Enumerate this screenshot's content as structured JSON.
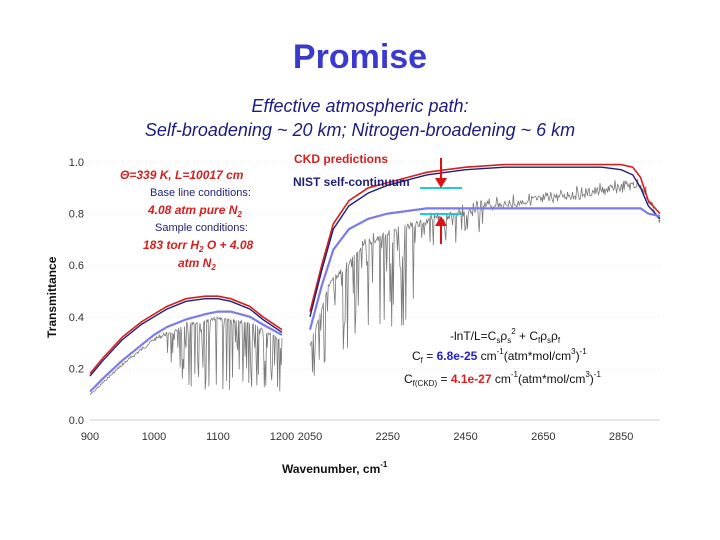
{
  "slide": {
    "title": "Promise",
    "subtitle_line1": "Effective atmospheric path:",
    "subtitle_line2": "Self-broadening ~ 20 km; Nitrogen-broadening ~ 6 km"
  },
  "colors": {
    "title": "#3a3ad0",
    "subtitle": "#1c1c80",
    "ckd": "#d62020",
    "nist": "#7b7bea",
    "measured": "#7a7a7a",
    "model_dark": "#1f1f7a",
    "cyan": "#20c8d8",
    "arrow": "#e01010"
  },
  "chart_data": {
    "type": "line",
    "xlabel": "Wavenumber, cm",
    "xlabel_sup": "-1",
    "ylabel": "Transmittance",
    "ylim": [
      0.0,
      1.0
    ],
    "yticks": [
      "1.0",
      "0.8",
      "0.6",
      "0.4",
      "0.2",
      "0.0"
    ],
    "grid": false,
    "panels": [
      {
        "xlim": [
          900,
          1200
        ],
        "xticks": [
          "900",
          "1000",
          "1100",
          "1200"
        ],
        "series": [
          {
            "name": "CKD predictions",
            "x": [
              900,
              920,
              950,
              980,
              1000,
              1020,
              1050,
              1080,
              1100,
              1120,
              1150,
              1170,
              1200
            ],
            "y": [
              0.18,
              0.24,
              0.32,
              0.38,
              0.41,
              0.44,
              0.47,
              0.48,
              0.48,
              0.47,
              0.44,
              0.4,
              0.35
            ]
          },
          {
            "name": "",
            "x": [
              900,
              920,
              950,
              980,
              1000,
              1020,
              1050,
              1080,
              1100,
              1120,
              1150,
              1170,
              1200
            ],
            "y": [
              0.17,
              0.23,
              0.31,
              0.37,
              0.4,
              0.43,
              0.46,
              0.47,
              0.47,
              0.46,
              0.43,
              0.39,
              0.34
            ]
          },
          {
            "name": "NIST self-continuum",
            "x": [
              900,
              920,
              950,
              980,
              1000,
              1020,
              1050,
              1080,
              1100,
              1120,
              1150,
              1170,
              1200
            ],
            "y": [
              0.11,
              0.16,
              0.23,
              0.29,
              0.33,
              0.36,
              0.39,
              0.41,
              0.42,
              0.42,
              0.4,
              0.37,
              0.33
            ]
          }
        ],
        "measured_envelope": {
          "x": [
            900,
            950,
            1000,
            1050,
            1100,
            1150,
            1200
          ],
          "y": [
            0.1,
            0.22,
            0.32,
            0.38,
            0.41,
            0.39,
            0.32
          ]
        }
      },
      {
        "xlim": [
          2050,
          2950
        ],
        "xticks": [
          "2050",
          "2250",
          "2450",
          "2650",
          "2850"
        ],
        "series": [
          {
            "name": "CKD predictions",
            "x": [
              2050,
              2080,
              2110,
              2150,
              2200,
              2250,
              2300,
              2350,
              2400,
              2450,
              2550,
              2650,
              2750,
              2800,
              2850,
              2880,
              2900,
              2920,
              2950
            ],
            "y": [
              0.42,
              0.6,
              0.76,
              0.85,
              0.9,
              0.92,
              0.94,
              0.96,
              0.97,
              0.98,
              0.99,
              0.99,
              0.99,
              0.99,
              0.99,
              0.98,
              0.94,
              0.85,
              0.8
            ]
          },
          {
            "name": "",
            "x": [
              2050,
              2080,
              2110,
              2150,
              2200,
              2250,
              2300,
              2350,
              2400,
              2450,
              2550,
              2650,
              2750,
              2800,
              2850,
              2880,
              2900,
              2920,
              2950
            ],
            "y": [
              0.4,
              0.58,
              0.74,
              0.83,
              0.88,
              0.91,
              0.93,
              0.95,
              0.96,
              0.97,
              0.98,
              0.98,
              0.98,
              0.98,
              0.97,
              0.95,
              0.9,
              0.83,
              0.78
            ]
          },
          {
            "name": "NIST self-continuum",
            "x": [
              2050,
              2080,
              2110,
              2150,
              2200,
              2250,
              2300,
              2350,
              2400,
              2450,
              2550,
              2650,
              2750,
              2800,
              2850,
              2880,
              2900,
              2920,
              2950
            ],
            "y": [
              0.35,
              0.52,
              0.66,
              0.74,
              0.78,
              0.8,
              0.81,
              0.82,
              0.82,
              0.82,
              0.82,
              0.82,
              0.82,
              0.82,
              0.82,
              0.82,
              0.82,
              0.8,
              0.79
            ]
          }
        ],
        "measured_envelope": {
          "x": [
            2050,
            2100,
            2200,
            2300,
            2400,
            2500,
            2600,
            2700,
            2800,
            2900,
            2950
          ],
          "y": [
            0.3,
            0.55,
            0.72,
            0.78,
            0.82,
            0.86,
            0.88,
            0.9,
            0.92,
            0.95,
            0.8
          ]
        }
      }
    ],
    "annotations": {
      "theta": "Θ=339 K, L=10017 cm",
      "baseline_label": "Base line conditions:",
      "baseline_value": "4.08 atm pure N",
      "baseline_value_sub": "2",
      "sample_label": "Sample conditions:",
      "sample_value_1": "183 torr H",
      "sample_value_1_sub": "2",
      "sample_value_1_rest": " O + 4.08",
      "sample_value_2": "atm N",
      "sample_value_2_sub": "2",
      "ckd_legend": "CKD predictions",
      "nist_legend": "NIST self-continuum",
      "equation": "-lnT/L=Csρs² + Cfρsρf",
      "eq_prefix": "-lnT/L=C",
      "eq_s_sub": "s",
      "eq_rho": "ρ",
      "eq_rho_s_sub": "s",
      "eq_sq": "2",
      "eq_plus": " + C",
      "eq_f_sub": "f",
      "eq_rho_f_sub": "f",
      "cf_label": "C",
      "cf_label_sub": "f",
      "cf_eq": " = ",
      "cf_value": "6.8e-25",
      "cf_units": " cm",
      "cf_units_sup": "-1",
      "cf_units_rest": "(atm*mol/cm",
      "cf_units_sup2": "3",
      "cf_units_close": ")",
      "cf_units_sup3": "-1",
      "ckd_label": "C",
      "ckd_label_sub": "f(CKD)",
      "ckd_eq": " = ",
      "ckd_value": "4.1e-27",
      "ckd_units": " cm",
      "ckd_units_sup": "-1",
      "ckd_units_rest": "(atm*mol/cm",
      "ckd_units_sup2": "3",
      "ckd_units_close": ")",
      "ckd_units_sup3": "-1"
    }
  }
}
